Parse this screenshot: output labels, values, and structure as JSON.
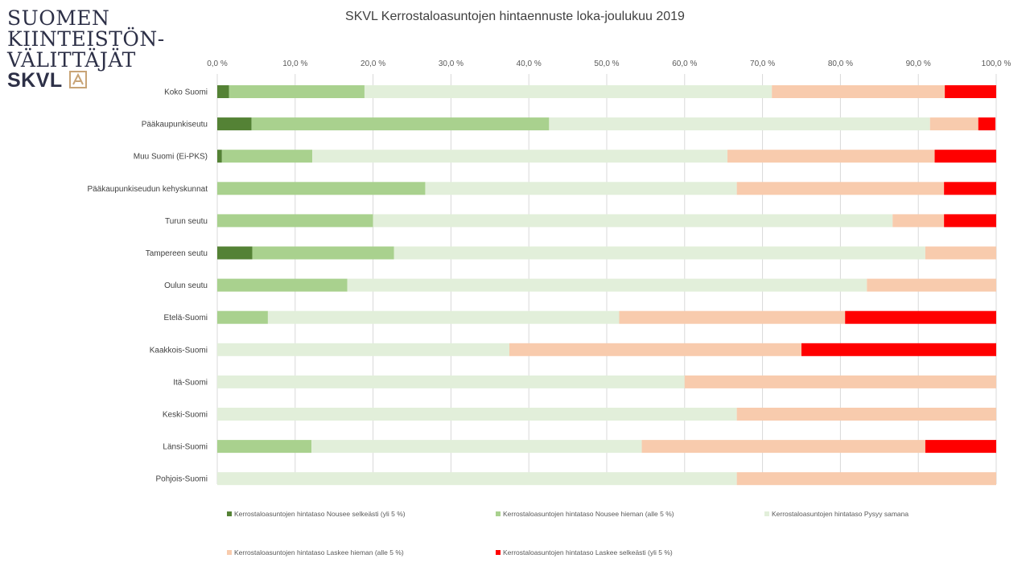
{
  "logo": {
    "line1": "SUOMEN",
    "line2": "KIINTEISTÖN-",
    "line3": "VÄLITTÄJÄT",
    "brand": "SKVL",
    "icon": "house-icon"
  },
  "chart_data": {
    "type": "bar",
    "orientation": "horizontal",
    "stacked": true,
    "percent": true,
    "title": "SKVL Kerrostaloasuntojen hintaennuste loka-joulukuu 2019",
    "xlim": [
      0,
      100
    ],
    "xticks": [
      "0,0 %",
      "10,0 %",
      "20,0 %",
      "30,0 %",
      "40,0 %",
      "50,0 %",
      "60,0 %",
      "70,0 %",
      "80,0 %",
      "90,0 %",
      "100,0 %"
    ],
    "xtick_values": [
      0,
      10,
      20,
      30,
      40,
      50,
      60,
      70,
      80,
      90,
      100
    ],
    "x_axis_position": "top",
    "grid": true,
    "legend_position": "bottom",
    "categories": [
      "Koko Suomi",
      "Pääkaupunkiseutu",
      "Muu Suomi (Ei-PKS)",
      "Pääkaupunkiseudun kehyskunnat",
      "Turun seutu",
      "Tampereen seutu",
      "Oulun seutu",
      "Etelä-Suomi",
      "Kaakkois-Suomi",
      "Itä-Suomi",
      "Keski-Suomi",
      "Länsi-Suomi",
      "Pohjois-Suomi"
    ],
    "series": [
      {
        "name": "Kerrostaloasuntojen hintataso Nousee selkeästi (yli 5 %)",
        "color": "#548235",
        "values": [
          1.5,
          4.4,
          0.6,
          0,
          0,
          4.5,
          0,
          0,
          0,
          0,
          0,
          0,
          0
        ]
      },
      {
        "name": "Kerrostaloasuntojen hintataso Nousee hieman (alle 5 %)",
        "color": "#a9d18e",
        "values": [
          17.4,
          38.2,
          11.6,
          26.7,
          20.0,
          18.2,
          16.7,
          6.5,
          0,
          0,
          0,
          12.1,
          0
        ]
      },
      {
        "name": "Kerrostaloasuntojen hintataso Pysyy samana",
        "color": "#e2efda",
        "values": [
          52.3,
          48.9,
          53.3,
          40.0,
          66.7,
          68.2,
          66.7,
          45.1,
          37.5,
          60.0,
          66.7,
          42.4,
          66.7
        ]
      },
      {
        "name": "Kerrostaloasuntojen hintataso Laskee hieman (alle 5 %)",
        "color": "#f8cbad",
        "values": [
          22.2,
          6.2,
          26.6,
          26.6,
          6.6,
          9.1,
          16.6,
          29.0,
          37.5,
          40.0,
          33.3,
          36.4,
          33.3
        ]
      },
      {
        "name": "Kerrostaloasuntojen hintataso Laskee selkeästi (yli 5 %)",
        "color": "#ff0000",
        "values": [
          6.6,
          2.2,
          7.9,
          6.7,
          6.7,
          0,
          0,
          19.4,
          25.0,
          0,
          0,
          9.1,
          0
        ]
      }
    ]
  }
}
